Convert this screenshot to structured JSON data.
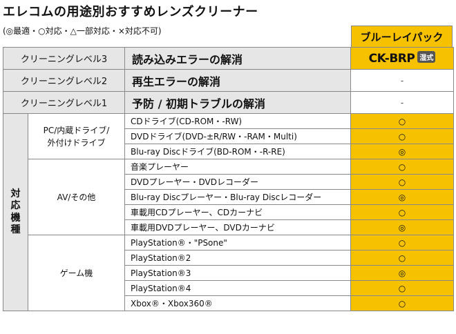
{
  "title": "エレコムの用途別おすすめレンズクリーナー",
  "legend": "(◎最適・○対応・△一部対応・×対応不可)",
  "product": {
    "header": "ブルーレイパック",
    "model": "CK-BRP",
    "badge": "湿式"
  },
  "levels": [
    {
      "label": "クリーニングレベル3",
      "title": "読み込みエラーの解消",
      "mark": "",
      "highlight": true
    },
    {
      "label": "クリーニングレベル2",
      "title": "再生エラーの解消",
      "mark": "-",
      "highlight": false
    },
    {
      "label": "クリーニングレベル1",
      "title": "予防 / 初期トラブルの解消",
      "mark": "-",
      "highlight": false
    }
  ],
  "side_label": "対応機種",
  "categories": [
    {
      "name_line1": "PC/内蔵ドライブ/",
      "name_line2": "外付けドライブ"
    },
    {
      "name_line1": "AV/その他",
      "name_line2": ""
    },
    {
      "name_line1": "ゲーム機",
      "name_line2": ""
    }
  ],
  "devices": [
    {
      "name": "CDドライブ(CD-ROM・-RW)",
      "mark": "○"
    },
    {
      "name": "DVDドライブ(DVD-±R/RW・-RAM・Multi)",
      "mark": "○"
    },
    {
      "name": "Blu-ray Discドライブ(BD-ROM・-R-RE)",
      "mark": "◎"
    },
    {
      "name": "音楽プレーヤー",
      "mark": "○"
    },
    {
      "name": "DVDプレーヤー・DVDレコーダー",
      "mark": "○"
    },
    {
      "name": "Blu-ray Discプレーヤー・Blu-ray Discレコーダー",
      "mark": "◎"
    },
    {
      "name": "車載用CDプレーヤー、CDカーナビ",
      "mark": "○"
    },
    {
      "name": "車載用DVDプレーヤー、DVDカーナビ",
      "mark": "◎"
    },
    {
      "name": "PlayStation®・\"PSone\"",
      "mark": "○"
    },
    {
      "name": "PlayStation®2",
      "mark": "○"
    },
    {
      "name": "PlayStation®3",
      "mark": "◎"
    },
    {
      "name": "PlayStation®4",
      "mark": "○"
    },
    {
      "name": "Xbox®・Xbox360®",
      "mark": "○"
    }
  ]
}
